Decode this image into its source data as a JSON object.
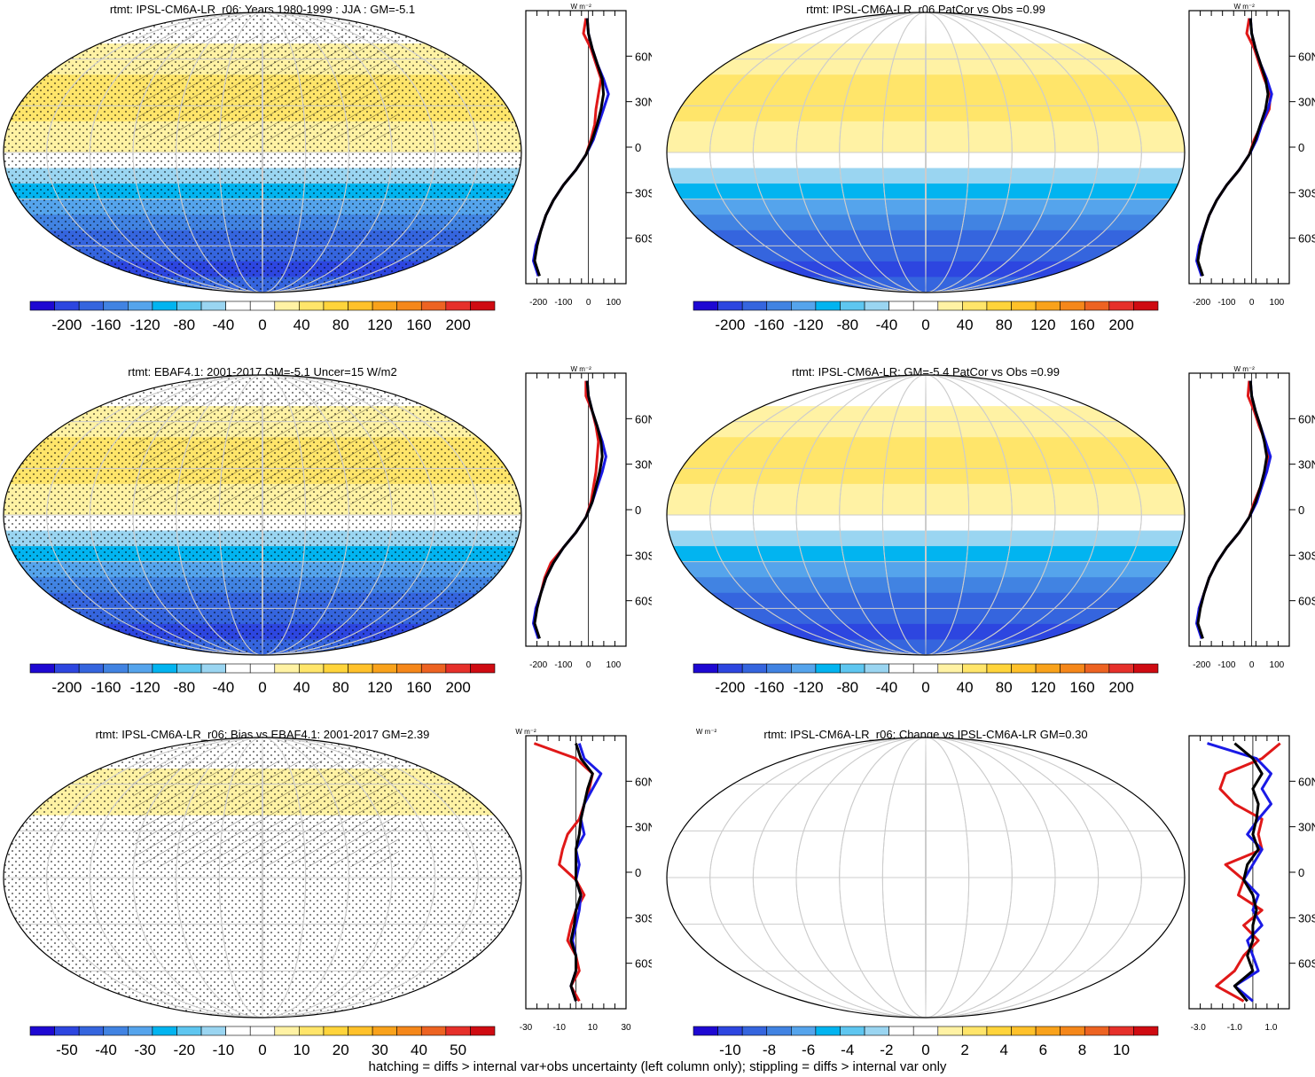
{
  "footer": "hatching = diffs > internal var+obs uncertainty (left column only); stippling = diffs > internal var only",
  "lat_labels": [
    "60N",
    "30N",
    "0",
    "30S",
    "60S"
  ],
  "profile_unit_label": "W m⁻²",
  "colors": {
    "scale_full": [
      "#1e08d2",
      "#2d46e0",
      "#3565de",
      "#4183e2",
      "#55a4ec",
      "#02b4f0",
      "#5ec6f0",
      "#9ad5f1",
      "#ffffff",
      "#ffffff",
      "#fff2a4",
      "#ffe56a",
      "#ffd43b",
      "#ffc12a",
      "#f9a21b",
      "#f5871a",
      "#ed6322",
      "#e6302a",
      "#cf0b12"
    ],
    "profile_obs": "#e01818",
    "profile_model": "#1a1ae6",
    "profile_other": "#000000"
  },
  "chart_data": [
    {
      "type": "heatmap",
      "title": "rtmt: IPSL-CM6A-LR_r06: Years 1980-1999 : JJA : GM=-5.1",
      "colorbar_ticks": [
        "-200",
        "-160",
        "-120",
        "-80",
        "-40",
        "0",
        "40",
        "80",
        "120",
        "160",
        "200"
      ],
      "profile_xticks": [
        "-200",
        "-100",
        "0",
        "100"
      ],
      "profile_xlim": [
        -250,
        150
      ],
      "lat": [
        85,
        75,
        65,
        55,
        45,
        35,
        25,
        15,
        5,
        -5,
        -15,
        -25,
        -35,
        -45,
        -55,
        -65,
        -75,
        -85
      ],
      "profiles": [
        {
          "color": "profile_obs",
          "values": [
            -10,
            -20,
            10,
            30,
            50,
            40,
            30,
            25,
            10,
            -10,
            -50,
            -100,
            -140,
            -170,
            -190,
            -210,
            -215,
            -200
          ]
        },
        {
          "color": "profile_model",
          "values": [
            -5,
            0,
            15,
            35,
            60,
            80,
            60,
            40,
            20,
            -10,
            -50,
            -100,
            -140,
            -170,
            -190,
            -210,
            -220,
            -200
          ]
        },
        {
          "color": "profile_other",
          "values": [
            -5,
            0,
            15,
            35,
            55,
            60,
            50,
            35,
            15,
            -10,
            -50,
            -100,
            -140,
            -170,
            -190,
            -205,
            -215,
            -195
          ]
        }
      ]
    },
    {
      "type": "heatmap",
      "title": "rtmt: IPSL-CM6A-LR_r06 PatCor vs Obs =0.99",
      "colorbar_ticks": [
        "-200",
        "-160",
        "-120",
        "-80",
        "-40",
        "0",
        "40",
        "80",
        "120",
        "160",
        "200"
      ],
      "profile_xticks": [
        "-200",
        "-100",
        "0",
        "100"
      ],
      "profile_xlim": [
        -250,
        150
      ],
      "lat": [
        85,
        75,
        65,
        55,
        45,
        35,
        25,
        15,
        5,
        -5,
        -15,
        -25,
        -35,
        -45,
        -55,
        -65,
        -75,
        -85
      ],
      "profiles": [
        {
          "color": "profile_obs",
          "values": [
            -10,
            -20,
            10,
            30,
            50,
            75,
            70,
            40,
            10,
            -10,
            -50,
            -100,
            -140,
            -170,
            -190,
            -210,
            -215,
            -200
          ]
        },
        {
          "color": "profile_model",
          "values": [
            -5,
            0,
            15,
            35,
            60,
            80,
            65,
            40,
            20,
            -10,
            -50,
            -100,
            -140,
            -170,
            -190,
            -210,
            -220,
            -200
          ]
        },
        {
          "color": "profile_other",
          "values": [
            -5,
            0,
            15,
            35,
            55,
            65,
            55,
            35,
            15,
            -10,
            -50,
            -100,
            -140,
            -170,
            -190,
            -205,
            -215,
            -195
          ]
        }
      ]
    },
    {
      "type": "heatmap",
      "title": "rtmt: EBAF4.1: 2001-2017 GM=-5.1 Uncer=15 W/m2",
      "colorbar_ticks": [
        "-200",
        "-160",
        "-120",
        "-80",
        "-40",
        "0",
        "40",
        "80",
        "120",
        "160",
        "200"
      ],
      "profile_xticks": [
        "-200",
        "-100",
        "0",
        "100"
      ],
      "profile_xlim": [
        -250,
        150
      ],
      "lat": [
        85,
        75,
        65,
        55,
        45,
        35,
        25,
        15,
        5,
        -5,
        -15,
        -25,
        -35,
        -45,
        -55,
        -65,
        -75,
        -85
      ],
      "profiles": [
        {
          "color": "profile_obs",
          "values": [
            -10,
            -10,
            15,
            30,
            40,
            35,
            30,
            20,
            10,
            -10,
            -50,
            -100,
            -150,
            -175,
            -190,
            -210,
            -215,
            -200
          ]
        },
        {
          "color": "profile_model",
          "values": [
            -5,
            0,
            15,
            35,
            55,
            70,
            55,
            35,
            15,
            -10,
            -50,
            -100,
            -140,
            -170,
            -190,
            -210,
            -220,
            -200
          ]
        },
        {
          "color": "profile_other",
          "values": [
            -5,
            0,
            15,
            35,
            50,
            55,
            45,
            30,
            15,
            -10,
            -50,
            -100,
            -140,
            -170,
            -190,
            -205,
            -215,
            -195
          ]
        }
      ]
    },
    {
      "type": "heatmap",
      "title": "rtmt: IPSL-CM6A-LR: GM=-5.4 PatCor vs Obs =0.99",
      "colorbar_ticks": [
        "-200",
        "-160",
        "-120",
        "-80",
        "-40",
        "0",
        "40",
        "80",
        "120",
        "160",
        "200"
      ],
      "profile_xticks": [
        "-200",
        "-100",
        "0",
        "100"
      ],
      "profile_xlim": [
        -250,
        150
      ],
      "lat": [
        85,
        75,
        65,
        55,
        45,
        35,
        25,
        15,
        5,
        -5,
        -15,
        -25,
        -35,
        -45,
        -55,
        -65,
        -75,
        -85
      ],
      "profiles": [
        {
          "color": "profile_obs",
          "values": [
            -10,
            -15,
            10,
            30,
            55,
            70,
            60,
            35,
            10,
            -10,
            -50,
            -100,
            -140,
            -170,
            -190,
            -210,
            -215,
            -200
          ]
        },
        {
          "color": "profile_model",
          "values": [
            -5,
            0,
            15,
            35,
            55,
            75,
            60,
            40,
            20,
            -10,
            -50,
            -100,
            -140,
            -170,
            -190,
            -210,
            -220,
            -200
          ]
        },
        {
          "color": "profile_other",
          "values": [
            -5,
            0,
            15,
            35,
            50,
            60,
            50,
            35,
            15,
            -10,
            -50,
            -100,
            -140,
            -170,
            -190,
            -205,
            -215,
            -195
          ]
        }
      ]
    },
    {
      "type": "heatmap",
      "title": "rtmt: IPSL-CM6A-LR_r06: Bias vs EBAF4.1: 2001-2017 GM=2.39",
      "colorbar_ticks": [
        "-50",
        "-40",
        "-30",
        "-20",
        "-10",
        "0",
        "10",
        "20",
        "30",
        "40",
        "50"
      ],
      "profile_xticks": [
        "-30",
        "-10",
        "10",
        "30"
      ],
      "profile_xlim": [
        -30,
        30
      ],
      "lat": [
        85,
        75,
        65,
        55,
        45,
        35,
        25,
        15,
        5,
        -5,
        -15,
        -25,
        -35,
        -45,
        -55,
        -65,
        -75,
        -85
      ],
      "profiles": [
        {
          "color": "profile_obs",
          "values": [
            -25,
            0,
            10,
            8,
            5,
            2,
            -5,
            -8,
            -10,
            0,
            5,
            0,
            -3,
            -5,
            0,
            2,
            -3,
            2
          ]
        },
        {
          "color": "profile_model",
          "values": [
            2,
            5,
            15,
            10,
            5,
            3,
            5,
            0,
            2,
            0,
            3,
            2,
            0,
            -2,
            0,
            0,
            -3,
            0
          ]
        },
        {
          "color": "profile_other",
          "values": [
            0,
            3,
            10,
            7,
            5,
            3,
            2,
            0,
            0,
            0,
            3,
            0,
            -1,
            -3,
            0,
            0,
            -3,
            0
          ]
        }
      ]
    },
    {
      "type": "heatmap",
      "title": "rtmt: IPSL-CM6A-LR_r06: Change vs IPSL-CM6A-LR GM=0.30",
      "colorbar_ticks": [
        "-10",
        "-8",
        "-6",
        "-4",
        "-2",
        "0",
        "2",
        "4",
        "6",
        "8",
        "10"
      ],
      "profile_xticks": [
        "-3.0",
        "-1.0",
        "1.0"
      ],
      "profile_xlim": [
        -3.5,
        2.0
      ],
      "lat": [
        85,
        75,
        65,
        55,
        45,
        35,
        25,
        15,
        5,
        -5,
        -15,
        -25,
        -35,
        -45,
        -55,
        -65,
        -75,
        -85
      ],
      "profiles": [
        {
          "color": "profile_obs",
          "values": [
            1.5,
            0.5,
            -1.5,
            -1.8,
            -1.0,
            0.5,
            0.3,
            0.5,
            -1.5,
            -0.5,
            -0.8,
            0.5,
            -0.5,
            0.3,
            -0.5,
            -1.0,
            -2.0,
            -0.5
          ]
        },
        {
          "color": "profile_model",
          "values": [
            -2.5,
            0.2,
            1.0,
            0.5,
            1.0,
            0.3,
            -0.3,
            0.5,
            0.0,
            -0.5,
            0.3,
            0.0,
            0.5,
            -0.3,
            0.0,
            0.3,
            -1.0,
            0.0
          ]
        },
        {
          "color": "profile_other",
          "values": [
            -1.0,
            0.0,
            0.5,
            0.0,
            0.3,
            0.2,
            0.0,
            0.3,
            -0.3,
            -0.5,
            0.0,
            0.2,
            0.0,
            0.0,
            -0.3,
            0.0,
            -1.0,
            -0.3
          ]
        }
      ]
    }
  ]
}
